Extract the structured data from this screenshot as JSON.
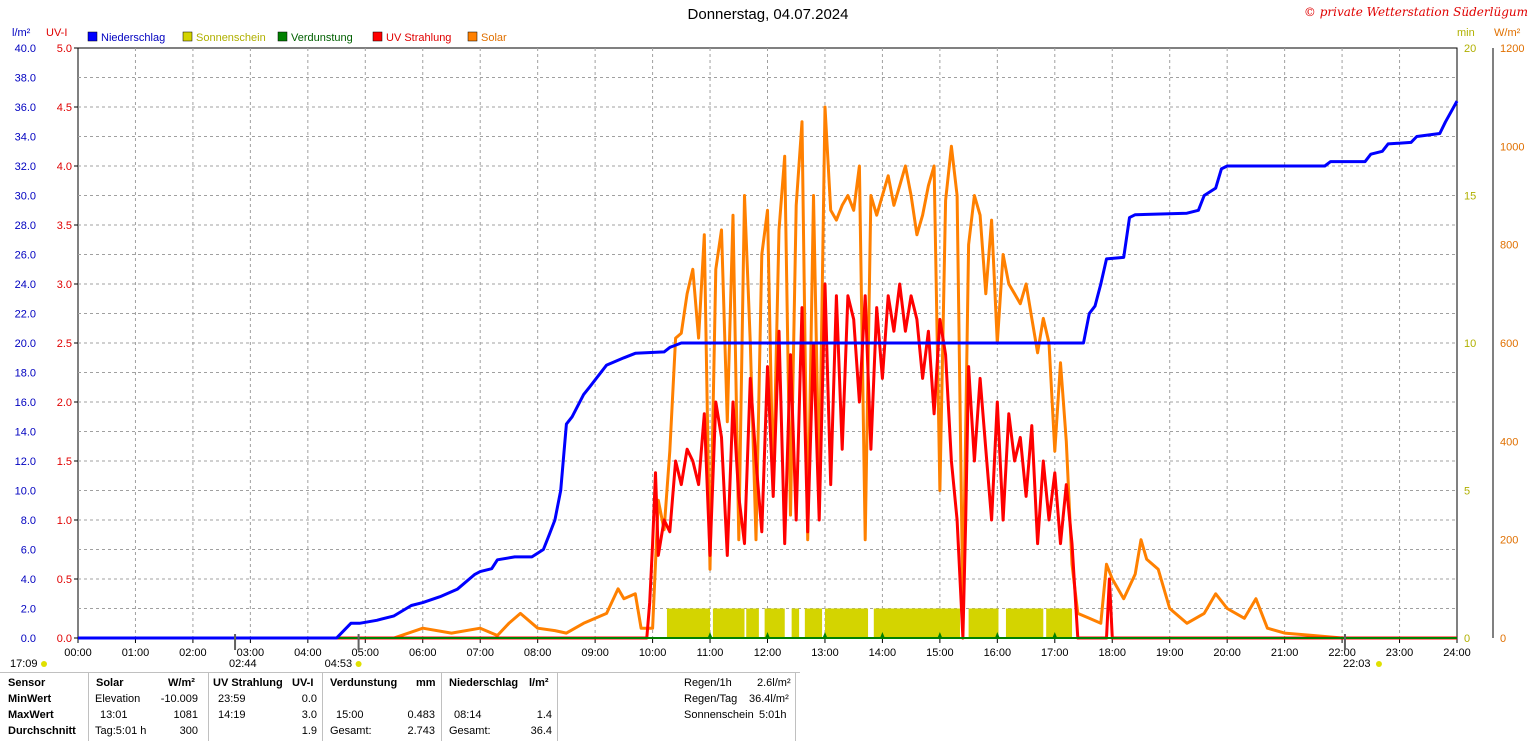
{
  "title": "Donnerstag, 04.07.2024",
  "credit": "© private Wetterstation Süderlügum",
  "units": {
    "left1": "l/m²",
    "left2": "UV-I",
    "right1": "min",
    "right2": "W/m²"
  },
  "legend": [
    {
      "label": "Niederschlag",
      "color": "#0000ff"
    },
    {
      "label": "Sonnenschein",
      "color": "#d4d400"
    },
    {
      "label": "Verdunstung",
      "color": "#008000"
    },
    {
      "label": "UV Strahlung",
      "color": "#ff0000"
    },
    {
      "label": "Solar",
      "color": "#ff8000"
    }
  ],
  "markers": {
    "sunrise_prev": "17:09",
    "civil": "02:44",
    "sunrise": "04:53",
    "sunset": "22:03"
  },
  "chart_data": {
    "type": "line",
    "x_ticks": [
      "00:00",
      "01:00",
      "02:00",
      "03:00",
      "04:00",
      "05:00",
      "06:00",
      "07:00",
      "08:00",
      "09:00",
      "10:00",
      "11:00",
      "12:00",
      "13:00",
      "14:00",
      "15:00",
      "16:00",
      "17:00",
      "18:00",
      "19:00",
      "20:00",
      "21:00",
      "22:00",
      "23:00",
      "24:00"
    ],
    "y_left1_ticks": [
      "0.0",
      "2.0",
      "4.0",
      "6.0",
      "8.0",
      "10.0",
      "12.0",
      "14.0",
      "16.0",
      "18.0",
      "20.0",
      "22.0",
      "24.0",
      "26.0",
      "28.0",
      "30.0",
      "32.0",
      "34.0",
      "36.0",
      "38.0",
      "40.0"
    ],
    "y_left2_ticks": [
      "0.0",
      "0.5",
      "1.0",
      "1.5",
      "2.0",
      "2.5",
      "3.0",
      "3.5",
      "4.0",
      "4.5",
      "5.0"
    ],
    "y_right1_ticks": [
      "0",
      "5",
      "10",
      "15",
      "20"
    ],
    "y_right2_ticks": [
      "0",
      "200",
      "400",
      "600",
      "800",
      "1000",
      "1200"
    ],
    "ranges": {
      "niederschlag": [
        0,
        40
      ],
      "uv": [
        0,
        5
      ],
      "sonnenschein": [
        0,
        20
      ],
      "solar": [
        0,
        1200
      ]
    },
    "grid": true,
    "series": [
      {
        "name": "Niederschlag",
        "axis": "niederschlag",
        "color": "#0000ff",
        "points": [
          [
            0,
            0
          ],
          [
            4.5,
            0
          ],
          [
            4.7,
            0.8
          ],
          [
            4.75,
            1.0
          ],
          [
            4.9,
            1.0
          ],
          [
            5.2,
            1.2
          ],
          [
            5.5,
            1.5
          ],
          [
            5.8,
            2.2
          ],
          [
            6.0,
            2.4
          ],
          [
            6.3,
            2.8
          ],
          [
            6.6,
            3.3
          ],
          [
            6.9,
            4.3
          ],
          [
            7.0,
            4.5
          ],
          [
            7.2,
            4.7
          ],
          [
            7.3,
            5.3
          ],
          [
            7.6,
            5.5
          ],
          [
            7.9,
            5.5
          ],
          [
            8.1,
            6.0
          ],
          [
            8.2,
            7.0
          ],
          [
            8.3,
            8.0
          ],
          [
            8.4,
            10.0
          ],
          [
            8.5,
            14.5
          ],
          [
            8.6,
            15.0
          ],
          [
            8.8,
            16.5
          ],
          [
            8.9,
            17.0
          ],
          [
            9.2,
            18.5
          ],
          [
            9.5,
            19.0
          ],
          [
            9.7,
            19.3
          ],
          [
            10.2,
            19.4
          ],
          [
            10.3,
            19.7
          ],
          [
            10.5,
            20.0
          ],
          [
            17.5,
            20.0
          ],
          [
            17.6,
            22.0
          ],
          [
            17.7,
            22.5
          ],
          [
            17.8,
            24.0
          ],
          [
            17.9,
            25.7
          ],
          [
            18.2,
            25.8
          ],
          [
            18.3,
            28.5
          ],
          [
            18.4,
            28.7
          ],
          [
            19.3,
            28.8
          ],
          [
            19.5,
            29.0
          ],
          [
            19.6,
            30.0
          ],
          [
            19.8,
            30.5
          ],
          [
            19.9,
            31.8
          ],
          [
            20.0,
            32.0
          ],
          [
            21.7,
            32.0
          ],
          [
            21.8,
            32.3
          ],
          [
            22.4,
            32.3
          ],
          [
            22.5,
            32.8
          ],
          [
            22.7,
            33.0
          ],
          [
            22.8,
            33.5
          ],
          [
            23.2,
            33.6
          ],
          [
            23.3,
            34.0
          ],
          [
            23.7,
            34.2
          ],
          [
            23.8,
            35.0
          ],
          [
            24,
            36.4
          ]
        ]
      },
      {
        "name": "Sonnenschein",
        "axis": "sonnenschein",
        "color": "#d4d400",
        "intervals": [
          [
            10.25,
            11.0
          ],
          [
            11.05,
            11.6
          ],
          [
            11.63,
            11.85
          ],
          [
            11.95,
            12.3
          ],
          [
            12.42,
            12.55
          ],
          [
            12.65,
            12.95
          ],
          [
            13.0,
            13.75
          ],
          [
            13.85,
            15.35
          ],
          [
            15.5,
            16.02
          ],
          [
            16.15,
            16.8
          ],
          [
            16.85,
            17.3
          ]
        ],
        "value": 1.0
      },
      {
        "name": "Verdunstung",
        "axis": "niederschlag",
        "color": "#008000",
        "points": [
          [
            0,
            0
          ],
          [
            24,
            0
          ]
        ],
        "ticks": [
          "11:00",
          "12:00",
          "13:00",
          "14:00",
          "15:00",
          "16:00",
          "17:00"
        ]
      },
      {
        "name": "UV Strahlung",
        "axis": "uv",
        "color": "#ff0000",
        "points": [
          [
            0,
            0
          ],
          [
            9.9,
            0
          ],
          [
            9.95,
            0.3
          ],
          [
            10.0,
            0.8
          ],
          [
            10.05,
            1.4
          ],
          [
            10.1,
            0.7
          ],
          [
            10.2,
            1.0
          ],
          [
            10.3,
            0.9
          ],
          [
            10.4,
            1.5
          ],
          [
            10.5,
            1.3
          ],
          [
            10.6,
            1.6
          ],
          [
            10.7,
            1.5
          ],
          [
            10.8,
            1.3
          ],
          [
            10.9,
            1.9
          ],
          [
            11.0,
            0.7
          ],
          [
            11.1,
            2.0
          ],
          [
            11.2,
            1.7
          ],
          [
            11.3,
            0.7
          ],
          [
            11.4,
            2.0
          ],
          [
            11.5,
            1.2
          ],
          [
            11.6,
            0.8
          ],
          [
            11.7,
            2.2
          ],
          [
            11.8,
            1.5
          ],
          [
            11.9,
            0.9
          ],
          [
            12.0,
            2.3
          ],
          [
            12.1,
            1.2
          ],
          [
            12.2,
            2.6
          ],
          [
            12.3,
            0.8
          ],
          [
            12.4,
            2.4
          ],
          [
            12.5,
            1.0
          ],
          [
            12.6,
            2.8
          ],
          [
            12.7,
            0.9
          ],
          [
            12.8,
            2.5
          ],
          [
            12.9,
            1.0
          ],
          [
            13.0,
            3.0
          ],
          [
            13.1,
            1.3
          ],
          [
            13.2,
            2.9
          ],
          [
            13.3,
            1.6
          ],
          [
            13.4,
            2.9
          ],
          [
            13.5,
            2.7
          ],
          [
            13.6,
            2.0
          ],
          [
            13.7,
            2.9
          ],
          [
            13.8,
            1.6
          ],
          [
            13.9,
            2.8
          ],
          [
            14.0,
            2.2
          ],
          [
            14.1,
            2.9
          ],
          [
            14.2,
            2.6
          ],
          [
            14.3,
            3.0
          ],
          [
            14.4,
            2.6
          ],
          [
            14.5,
            2.9
          ],
          [
            14.6,
            2.7
          ],
          [
            14.7,
            2.2
          ],
          [
            14.8,
            2.6
          ],
          [
            14.9,
            1.9
          ],
          [
            15.0,
            2.7
          ],
          [
            15.1,
            2.4
          ],
          [
            15.2,
            1.5
          ],
          [
            15.3,
            1.0
          ],
          [
            15.4,
            0.0
          ],
          [
            15.45,
            1.0
          ],
          [
            15.5,
            2.3
          ],
          [
            15.6,
            1.5
          ],
          [
            15.7,
            2.2
          ],
          [
            15.8,
            1.6
          ],
          [
            15.9,
            1.0
          ],
          [
            16.0,
            2.0
          ],
          [
            16.1,
            1.0
          ],
          [
            16.2,
            1.9
          ],
          [
            16.3,
            1.5
          ],
          [
            16.4,
            1.7
          ],
          [
            16.5,
            1.2
          ],
          [
            16.6,
            1.8
          ],
          [
            16.7,
            0.8
          ],
          [
            16.8,
            1.5
          ],
          [
            16.9,
            1.0
          ],
          [
            17.0,
            1.4
          ],
          [
            17.1,
            0.8
          ],
          [
            17.2,
            1.3
          ],
          [
            17.3,
            0.8
          ],
          [
            17.4,
            0.0
          ],
          [
            17.9,
            0.0
          ],
          [
            17.95,
            0.5
          ],
          [
            18.0,
            0.0
          ],
          [
            24,
            0
          ]
        ]
      },
      {
        "name": "Solar",
        "axis": "solar",
        "color": "#ff8000",
        "points": [
          [
            0,
            0
          ],
          [
            5.5,
            0
          ],
          [
            6,
            20
          ],
          [
            6.5,
            10
          ],
          [
            7,
            20
          ],
          [
            7.3,
            5
          ],
          [
            7.5,
            30
          ],
          [
            7.7,
            50
          ],
          [
            8.0,
            20
          ],
          [
            8.3,
            15
          ],
          [
            8.5,
            10
          ],
          [
            8.8,
            30
          ],
          [
            9.2,
            50
          ],
          [
            9.4,
            100
          ],
          [
            9.5,
            80
          ],
          [
            9.7,
            90
          ],
          [
            9.8,
            20
          ],
          [
            10.0,
            20
          ],
          [
            10.1,
            280
          ],
          [
            10.2,
            220
          ],
          [
            10.3,
            380
          ],
          [
            10.4,
            610
          ],
          [
            10.5,
            620
          ],
          [
            10.6,
            700
          ],
          [
            10.7,
            750
          ],
          [
            10.8,
            610
          ],
          [
            10.9,
            820
          ],
          [
            11.0,
            140
          ],
          [
            11.1,
            750
          ],
          [
            11.2,
            830
          ],
          [
            11.3,
            440
          ],
          [
            11.4,
            860
          ],
          [
            11.5,
            200
          ],
          [
            11.6,
            900
          ],
          [
            11.7,
            600
          ],
          [
            11.8,
            200
          ],
          [
            11.9,
            780
          ],
          [
            12.0,
            870
          ],
          [
            12.1,
            300
          ],
          [
            12.2,
            830
          ],
          [
            12.3,
            980
          ],
          [
            12.4,
            250
          ],
          [
            12.5,
            880
          ],
          [
            12.6,
            1050
          ],
          [
            12.7,
            200
          ],
          [
            12.8,
            900
          ],
          [
            12.9,
            300
          ],
          [
            13.0,
            1080
          ],
          [
            13.1,
            870
          ],
          [
            13.2,
            850
          ],
          [
            13.3,
            880
          ],
          [
            13.4,
            900
          ],
          [
            13.5,
            870
          ],
          [
            13.6,
            960
          ],
          [
            13.7,
            200
          ],
          [
            13.8,
            900
          ],
          [
            13.9,
            860
          ],
          [
            14.0,
            900
          ],
          [
            14.1,
            940
          ],
          [
            14.2,
            880
          ],
          [
            14.3,
            920
          ],
          [
            14.4,
            960
          ],
          [
            14.5,
            900
          ],
          [
            14.6,
            820
          ],
          [
            14.7,
            860
          ],
          [
            14.8,
            920
          ],
          [
            14.9,
            960
          ],
          [
            15.0,
            300
          ],
          [
            15.1,
            890
          ],
          [
            15.2,
            1000
          ],
          [
            15.3,
            900
          ],
          [
            15.4,
            60
          ],
          [
            15.5,
            800
          ],
          [
            15.6,
            900
          ],
          [
            15.7,
            860
          ],
          [
            15.8,
            700
          ],
          [
            15.9,
            850
          ],
          [
            16.0,
            600
          ],
          [
            16.1,
            780
          ],
          [
            16.2,
            720
          ],
          [
            16.3,
            700
          ],
          [
            16.4,
            680
          ],
          [
            16.5,
            720
          ],
          [
            16.6,
            650
          ],
          [
            16.7,
            580
          ],
          [
            16.8,
            650
          ],
          [
            16.9,
            600
          ],
          [
            17.0,
            380
          ],
          [
            17.1,
            560
          ],
          [
            17.2,
            400
          ],
          [
            17.3,
            150
          ],
          [
            17.4,
            50
          ],
          [
            17.6,
            40
          ],
          [
            17.8,
            30
          ],
          [
            17.9,
            150
          ],
          [
            18.0,
            120
          ],
          [
            18.2,
            80
          ],
          [
            18.4,
            130
          ],
          [
            18.5,
            200
          ],
          [
            18.6,
            160
          ],
          [
            18.8,
            140
          ],
          [
            19.0,
            60
          ],
          [
            19.3,
            30
          ],
          [
            19.6,
            50
          ],
          [
            19.8,
            90
          ],
          [
            20.0,
            60
          ],
          [
            20.3,
            40
          ],
          [
            20.5,
            80
          ],
          [
            20.7,
            20
          ],
          [
            21.0,
            10
          ],
          [
            21.5,
            5
          ],
          [
            22.0,
            0
          ],
          [
            24,
            0
          ]
        ]
      }
    ]
  },
  "table": {
    "row_labels": [
      "Sensor",
      "MinWert",
      "MaxWert",
      "Durchschnitt"
    ],
    "solar": {
      "header": "Solar",
      "unit": "W/m²",
      "r1a": "Elevation",
      "r1b": "-10.009",
      "r2a": "13:01",
      "r2b": "1081",
      "r3a": "Tag:5:01 h",
      "r3b": "300"
    },
    "uv": {
      "header": "UV Strahlung",
      "unit": "UV-I",
      "r1a": "23:59",
      "r1b": "0.0",
      "r2a": "14:19",
      "r2b": "3.0",
      "r3a": "",
      "r3b": "1.9"
    },
    "verdunstung": {
      "header": "Verdunstung",
      "unit": "mm",
      "r1a": "",
      "r1b": "",
      "r2a": "15:00",
      "r2b": "0.483",
      "r3a": "Gesamt:",
      "r3b": "2.743"
    },
    "niederschlag": {
      "header": "Niederschlag",
      "unit": "l/m²",
      "r1a": "",
      "r1b": "",
      "r2a": "08:14",
      "r2b": "1.4",
      "r3a": "Gesamt:",
      "r3b": "36.4"
    },
    "summary": {
      "l1a": "Regen/1h",
      "l1b": "2.6l/m²",
      "l2a": "Regen/Tag",
      "l2b": "36.4l/m²",
      "l3a": "Sonnenschein",
      "l3b": "5:01h"
    }
  }
}
